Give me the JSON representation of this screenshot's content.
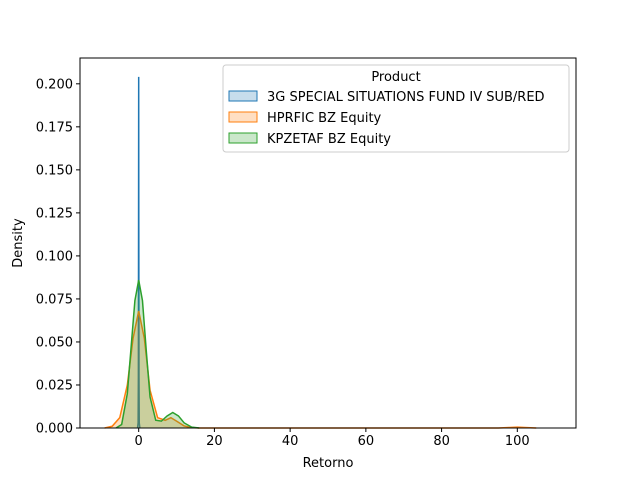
{
  "chart_data": {
    "type": "area",
    "kind": "kde",
    "xlabel": "Retorno",
    "ylabel": "Density",
    "xlim": [
      -15.5,
      115.5
    ],
    "ylim": [
      0,
      0.215
    ],
    "xticks": [
      0,
      20,
      40,
      60,
      80,
      100
    ],
    "xtick_labels": [
      "0",
      "20",
      "40",
      "60",
      "80",
      "100"
    ],
    "yticks": [
      0,
      0.025,
      0.05,
      0.075,
      0.1,
      0.125,
      0.15,
      0.175,
      0.2
    ],
    "ytick_labels": [
      "0.000",
      "0.025",
      "0.050",
      "0.075",
      "0.100",
      "0.125",
      "0.150",
      "0.175",
      "0.200"
    ],
    "grid": false,
    "legend": {
      "title": "Product",
      "placement": "top-right"
    },
    "series": [
      {
        "name": "3G SPECIAL SITUATIONS FUND IV SUB/RED",
        "color": "#1f77b4",
        "points": [
          [
            -0.3,
            0
          ],
          [
            -0.15,
            0.003
          ],
          [
            -0.08,
            0.03
          ],
          [
            -0.03,
            0.12
          ],
          [
            0,
            0.204
          ],
          [
            0.03,
            0.12
          ],
          [
            0.08,
            0.03
          ],
          [
            0.15,
            0.003
          ],
          [
            0.3,
            0
          ]
        ]
      },
      {
        "name": "HPRFIC BZ Equity",
        "color": "#ff7f0e",
        "points": [
          [
            -9,
            0
          ],
          [
            -7,
            0.001
          ],
          [
            -5,
            0.006
          ],
          [
            -3,
            0.025
          ],
          [
            -1.5,
            0.052
          ],
          [
            0,
            0.068
          ],
          [
            1.5,
            0.052
          ],
          [
            3,
            0.022
          ],
          [
            5,
            0.006
          ],
          [
            7,
            0.0045
          ],
          [
            8.5,
            0.006
          ],
          [
            10,
            0.004
          ],
          [
            12,
            0.0012
          ],
          [
            14,
            0.0002
          ],
          [
            16,
            0
          ],
          [
            95,
            0
          ],
          [
            98,
            0.0003
          ],
          [
            100,
            0.0005
          ],
          [
            102,
            0.0003
          ],
          [
            105,
            0
          ]
        ]
      },
      {
        "name": "KPZETAF BZ Equity",
        "color": "#2ca02c",
        "points": [
          [
            -6,
            0
          ],
          [
            -4.5,
            0.002
          ],
          [
            -3,
            0.02
          ],
          [
            -2,
            0.047
          ],
          [
            -1,
            0.074
          ],
          [
            0,
            0.086
          ],
          [
            1,
            0.074
          ],
          [
            2,
            0.045
          ],
          [
            3,
            0.018
          ],
          [
            4.5,
            0.0045
          ],
          [
            6,
            0.004
          ],
          [
            7.5,
            0.007
          ],
          [
            9,
            0.009
          ],
          [
            10.5,
            0.007
          ],
          [
            12,
            0.003
          ],
          [
            14,
            0.0005
          ],
          [
            16,
            0
          ]
        ]
      }
    ]
  }
}
